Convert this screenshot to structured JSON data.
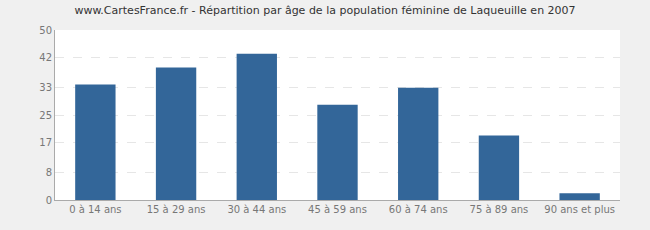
{
  "chart_data": {
    "type": "bar",
    "title": "www.CartesFrance.fr - Répartition par âge de la population féminine de Laqueuille en 2007",
    "categories": [
      "0 à 14 ans",
      "15 à 29 ans",
      "30 à 44 ans",
      "45 à 59 ans",
      "60 à 74 ans",
      "75 à 89 ans",
      "90 ans et plus"
    ],
    "values": [
      34,
      39,
      43,
      28,
      33,
      19,
      2
    ],
    "color": "#336699",
    "ylim": [
      0,
      50
    ],
    "yticks": [
      0,
      8,
      17,
      25,
      33,
      42,
      50
    ],
    "grid": true
  }
}
